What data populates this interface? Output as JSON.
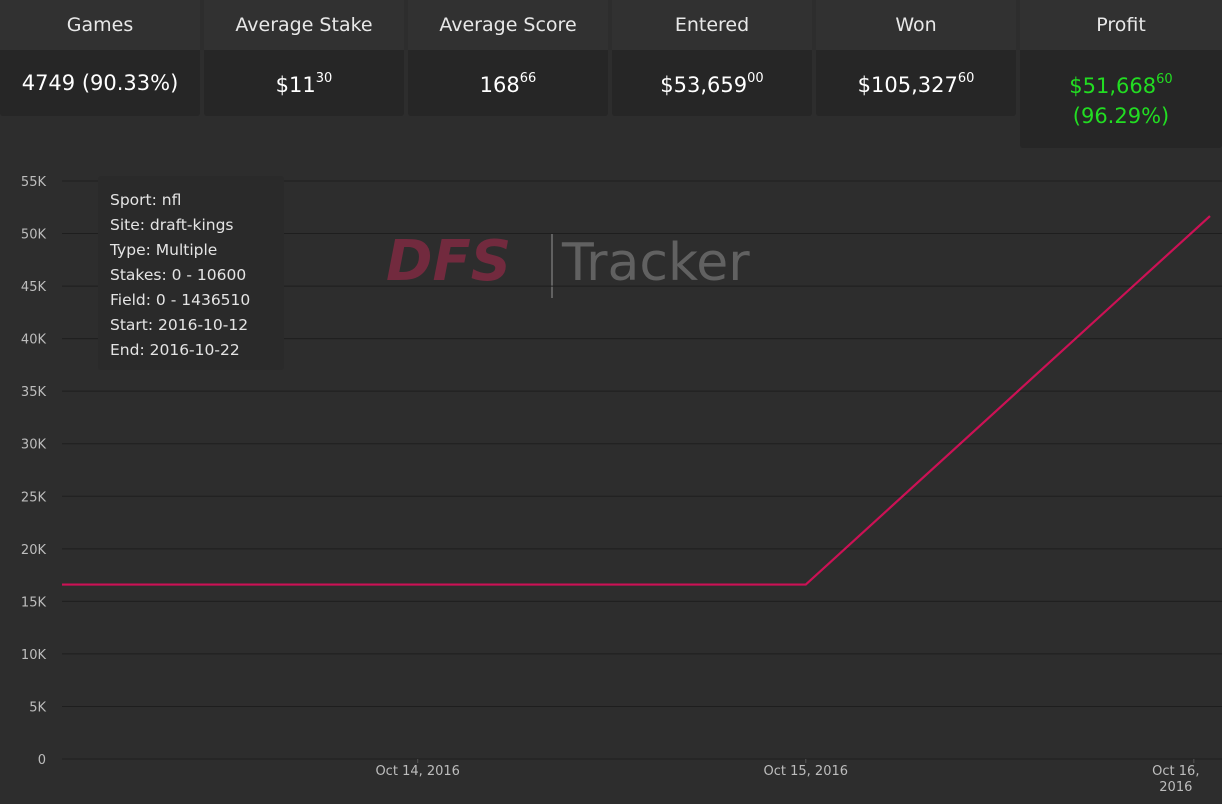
{
  "stats": {
    "games": {
      "label": "Games",
      "value": "4749 (90.33%)"
    },
    "average_stake": {
      "label": "Average Stake",
      "main": "$11",
      "cents": "30"
    },
    "average_score": {
      "label": "Average Score",
      "main": "168",
      "cents": "66"
    },
    "entered": {
      "label": "Entered",
      "main": "$53,659",
      "cents": "00"
    },
    "won": {
      "label": "Won",
      "main": "$105,327",
      "cents": "60"
    },
    "profit": {
      "label": "Profit",
      "main": "$51,668",
      "cents": "60",
      "percent": "(96.29%)",
      "color": "#22dd22"
    }
  },
  "filters": {
    "sport": "Sport: nfl",
    "site": "Site: draft-kings",
    "type": "Type: Multiple",
    "stakes": "Stakes: 0 - 10600",
    "field": "Field: 0 - 1436510",
    "start": "Start: 2016-10-12",
    "end": "End: 2016-10-22"
  },
  "logo": {
    "part1": "DFS",
    "part2": "Tracker"
  },
  "chart_data": {
    "type": "line",
    "y_ticks": [
      0,
      5000,
      10000,
      15000,
      20000,
      25000,
      30000,
      35000,
      40000,
      45000,
      50000,
      55000
    ],
    "y_tick_labels": [
      "0",
      "5K",
      "10K",
      "15K",
      "20K",
      "25K",
      "30K",
      "35K",
      "40K",
      "45K",
      "50K",
      "55K"
    ],
    "ylim": [
      0,
      55000
    ],
    "x_ticks": [
      {
        "date": "2016-10-14",
        "label": [
          "Oct 14, 2016"
        ]
      },
      {
        "date": "2016-10-15",
        "label": [
          "Oct 15, 2016"
        ]
      },
      {
        "date": "2016-10-16",
        "label": [
          "Oct 16,",
          "2016"
        ]
      }
    ],
    "xlim": [
      "2016-10-13T02:00",
      "2016-10-16T01:00"
    ],
    "grid": true,
    "line_color": "#cc1155",
    "series": [
      {
        "points": [
          {
            "x": "2016-10-13T02:00",
            "y": 16600
          },
          {
            "x": "2016-10-15T00:00",
            "y": 16600
          },
          {
            "x": "2016-10-16T01:00",
            "y": 51668.6
          }
        ]
      }
    ]
  }
}
